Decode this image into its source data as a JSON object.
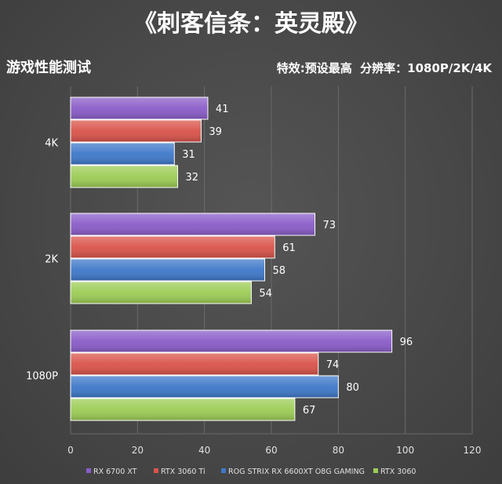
{
  "chart_data": {
    "type": "bar",
    "orientation": "horizontal",
    "title": "《刺客信条：英灵殿》",
    "subtitle_left": "游戏性能测试",
    "subtitle_right": "特效:预设最高  分辨率：1080P/2K/4K",
    "categories": [
      "4K",
      "2K",
      "1080P"
    ],
    "series": [
      {
        "name": "RX 6700 XT",
        "color": "#8a5cc8",
        "values": [
          41,
          73,
          96
        ]
      },
      {
        "name": "RTX 3060 Ti",
        "color": "#d9534a",
        "values": [
          39,
          61,
          74
        ]
      },
      {
        "name": "ROG STRIX RX 6600XT O8G GAMING",
        "color": "#3e78c9",
        "values": [
          31,
          58,
          80
        ]
      },
      {
        "name": "RTX 3060",
        "color": "#9ccc55",
        "values": [
          32,
          54,
          67
        ]
      }
    ],
    "xlim": [
      0,
      120
    ],
    "xticks": [
      0,
      20,
      40,
      60,
      80,
      100,
      120
    ],
    "grid": true,
    "legend_position": "bottom"
  }
}
